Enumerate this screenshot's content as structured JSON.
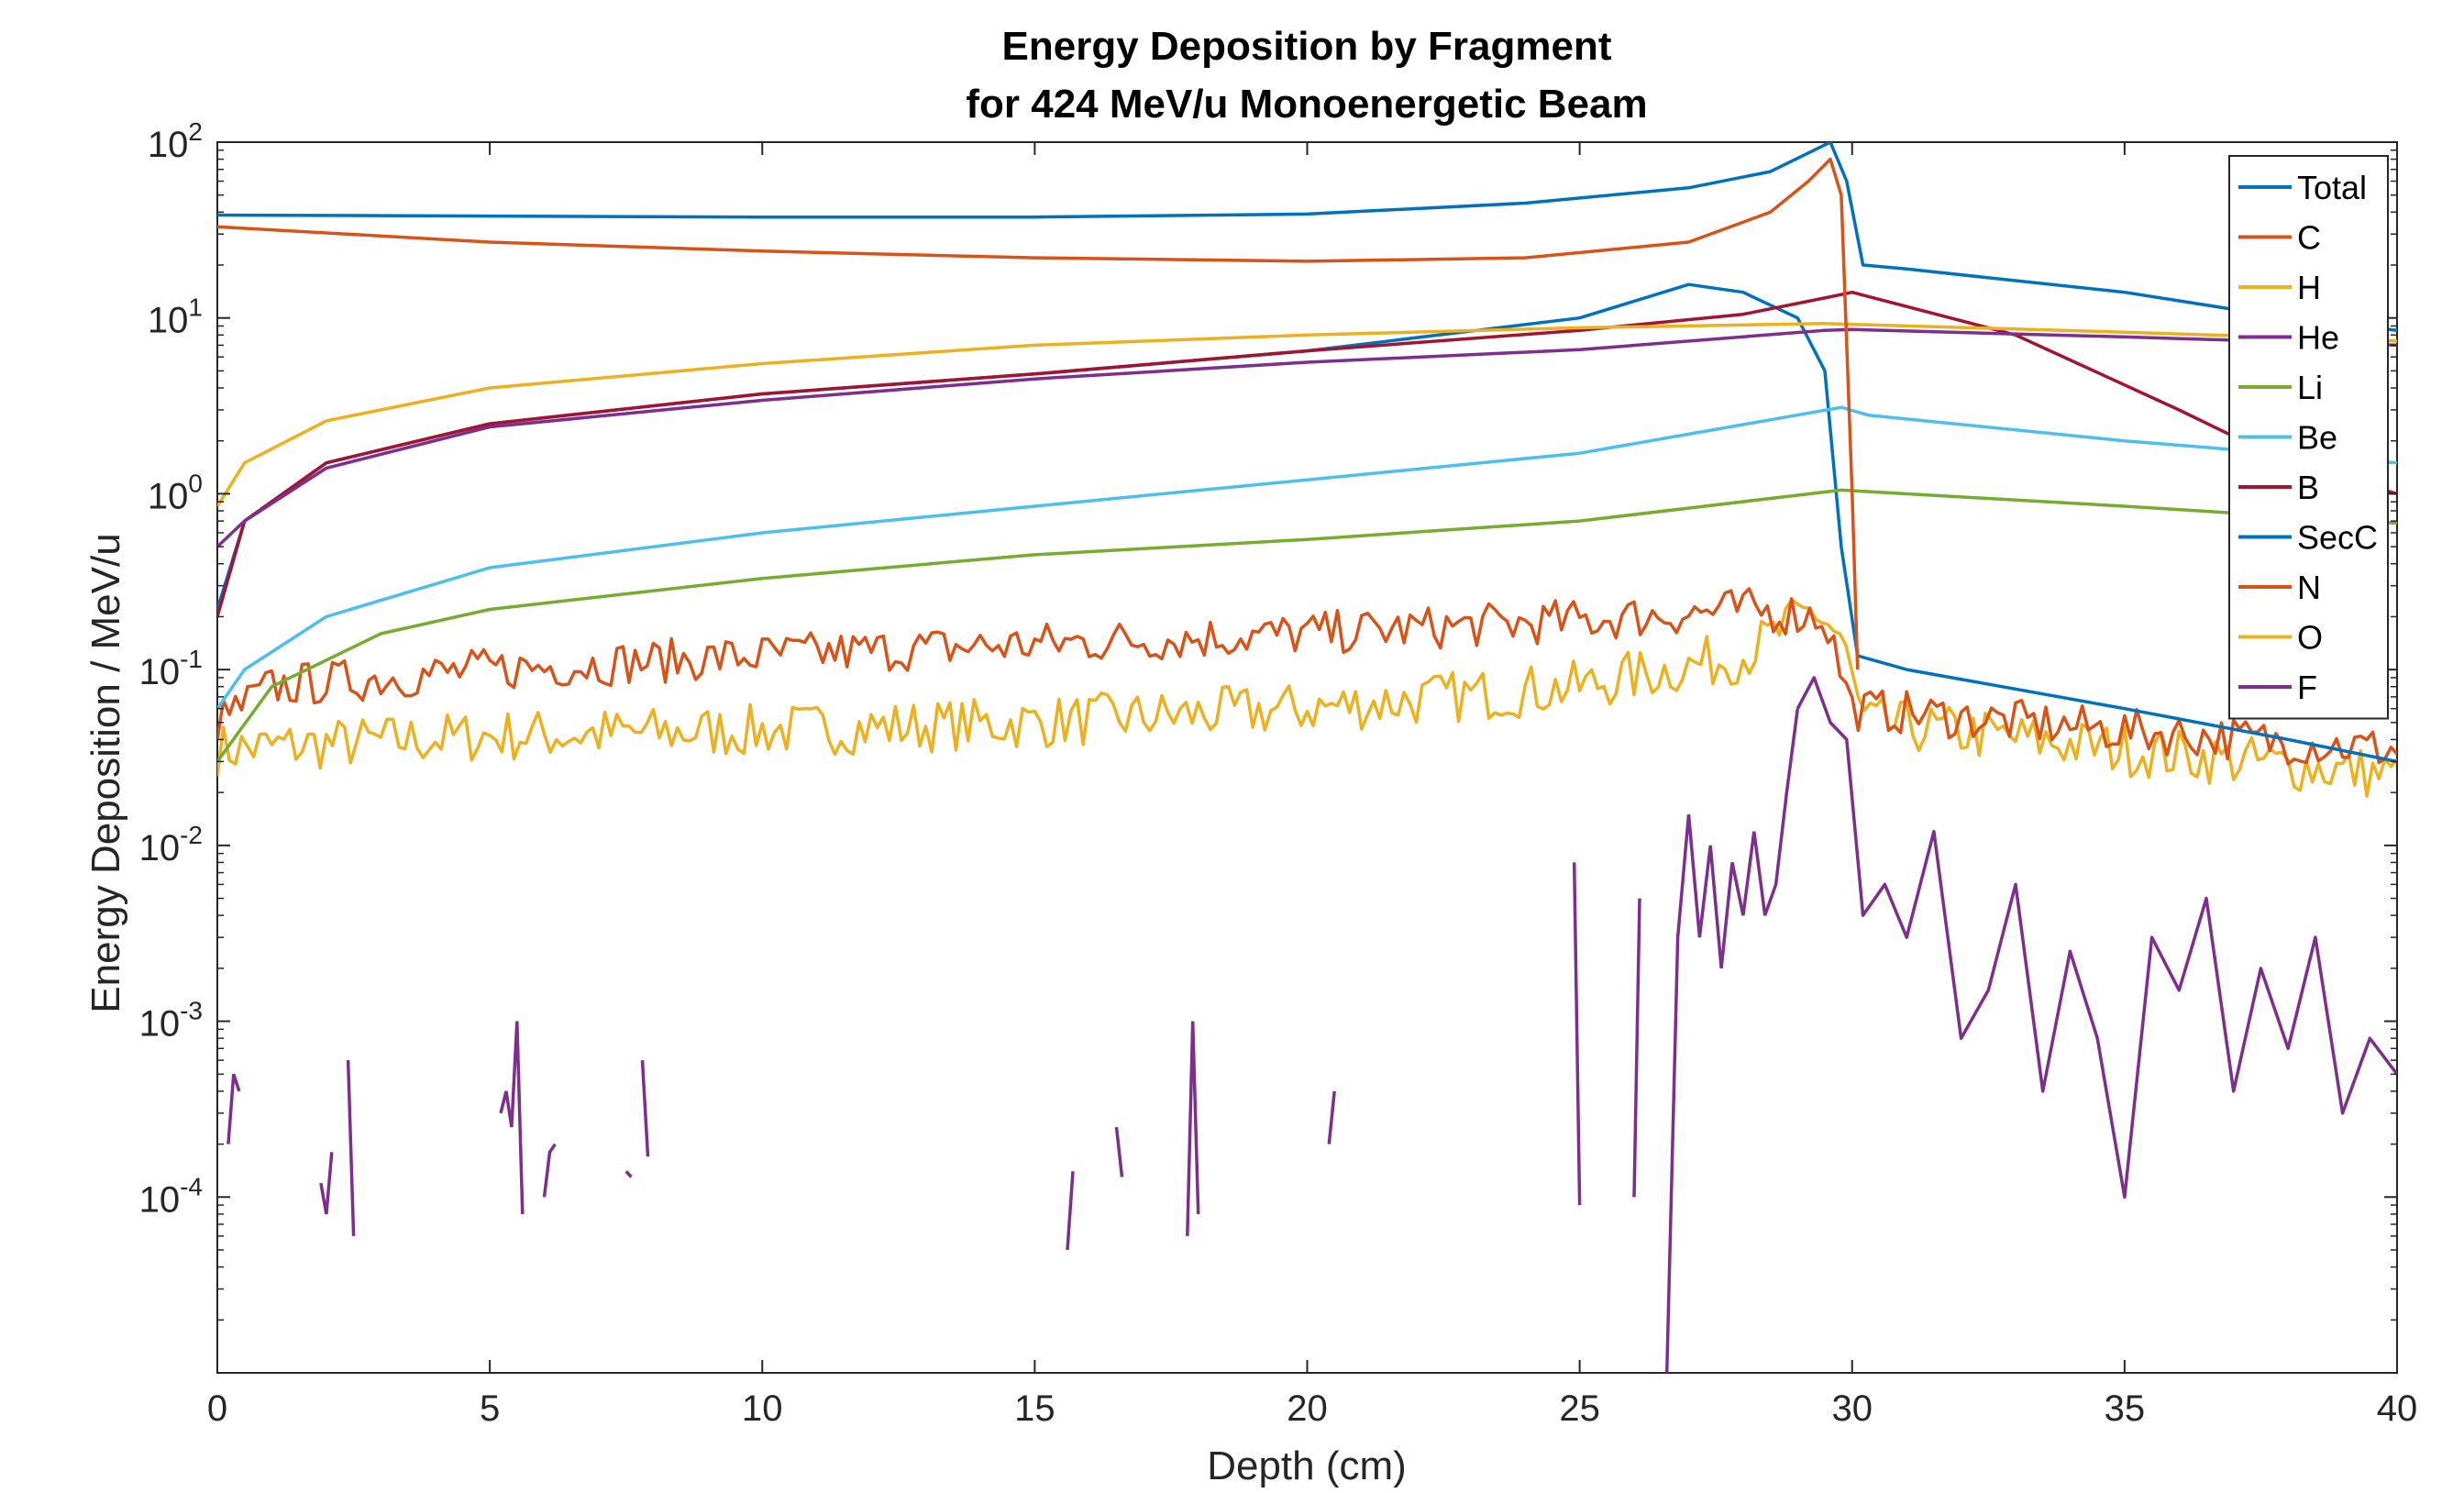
{
  "chart_data": {
    "type": "line",
    "title": "Energy Deposition by Fragment",
    "subtitle": "for 424 MeV/u Monoenergetic Beam",
    "xlabel": "Depth (cm)",
    "ylabel": "Energy Deposition / MeV/u",
    "xlim": [
      0,
      40
    ],
    "ylim": [
      1e-05,
      100
    ],
    "yscale": "log",
    "x_ticks": [
      "0",
      "5",
      "10",
      "15",
      "20",
      "25",
      "30",
      "35",
      "40"
    ],
    "y_ticks": [
      {
        "base": "10",
        "exp": "2",
        "value": 100
      },
      {
        "base": "10",
        "exp": "1",
        "value": 10
      },
      {
        "base": "10",
        "exp": "0",
        "value": 1
      },
      {
        "base": "10",
        "exp": "-1",
        "value": 0.1
      },
      {
        "base": "10",
        "exp": "-2",
        "value": 0.01
      },
      {
        "base": "10",
        "exp": "-3",
        "value": 0.001
      },
      {
        "base": "10",
        "exp": "-4",
        "value": 0.0001
      }
    ],
    "grid": false,
    "legend_position": "top-right",
    "series": [
      {
        "name": "Total",
        "color": "#0072BD",
        "noise": 0,
        "points": [
          [
            0,
            38.5
          ],
          [
            5,
            38
          ],
          [
            10,
            37.5
          ],
          [
            15,
            37.5
          ],
          [
            20,
            39
          ],
          [
            24,
            45
          ],
          [
            27,
            55
          ],
          [
            28.5,
            68
          ],
          [
            29.3,
            90
          ],
          [
            29.6,
            100
          ],
          [
            29.9,
            60
          ],
          [
            30.2,
            20
          ],
          [
            31,
            19
          ],
          [
            35,
            14
          ],
          [
            38,
            10
          ],
          [
            40,
            8.5
          ]
        ]
      },
      {
        "name": "C",
        "color": "#D95319",
        "noise": 0,
        "points": [
          [
            0,
            33
          ],
          [
            5,
            27
          ],
          [
            10,
            24
          ],
          [
            15,
            22
          ],
          [
            20,
            21
          ],
          [
            24,
            22
          ],
          [
            27,
            27
          ],
          [
            28.5,
            40
          ],
          [
            29.2,
            60
          ],
          [
            29.6,
            80
          ],
          [
            29.8,
            50
          ],
          [
            30.0,
            1
          ],
          [
            30.1,
            0.1
          ]
        ]
      },
      {
        "name": "H",
        "color": "#EDB120",
        "noise": 0,
        "points": [
          [
            0,
            0.85
          ],
          [
            0.5,
            1.5
          ],
          [
            2,
            2.6
          ],
          [
            5,
            4
          ],
          [
            10,
            5.5
          ],
          [
            15,
            7
          ],
          [
            20,
            8
          ],
          [
            25,
            8.8
          ],
          [
            29.5,
            9.3
          ],
          [
            30,
            9.2
          ],
          [
            35,
            8.3
          ],
          [
            40,
            7.4
          ]
        ]
      },
      {
        "name": "He",
        "color": "#7E2F8E",
        "noise": 0,
        "points": [
          [
            0,
            0.5
          ],
          [
            0.5,
            0.7
          ],
          [
            2,
            1.4
          ],
          [
            5,
            2.4
          ],
          [
            10,
            3.4
          ],
          [
            15,
            4.5
          ],
          [
            20,
            5.6
          ],
          [
            25,
            6.6
          ],
          [
            29.5,
            8.5
          ],
          [
            30,
            8.6
          ],
          [
            35,
            7.8
          ],
          [
            40,
            7
          ]
        ]
      },
      {
        "name": "Li",
        "color": "#77AC30",
        "noise": 0,
        "points": [
          [
            0,
            0.03
          ],
          [
            1,
            0.08
          ],
          [
            3,
            0.16
          ],
          [
            5,
            0.22
          ],
          [
            10,
            0.33
          ],
          [
            15,
            0.45
          ],
          [
            20,
            0.55
          ],
          [
            25,
            0.7
          ],
          [
            29.8,
            1.05
          ],
          [
            30.5,
            1.02
          ],
          [
            35,
            0.85
          ],
          [
            40,
            0.68
          ]
        ]
      },
      {
        "name": "Be",
        "color": "#4DBEEE",
        "noise": 0,
        "points": [
          [
            0,
            0.06
          ],
          [
            0.5,
            0.1
          ],
          [
            2,
            0.2
          ],
          [
            5,
            0.38
          ],
          [
            10,
            0.6
          ],
          [
            15,
            0.85
          ],
          [
            20,
            1.2
          ],
          [
            25,
            1.7
          ],
          [
            29.8,
            3.1
          ],
          [
            30.3,
            2.8
          ],
          [
            35,
            2
          ],
          [
            40,
            1.5
          ]
        ]
      },
      {
        "name": "B",
        "color": "#A2142F",
        "noise": 0,
        "points": [
          [
            0,
            0.2
          ],
          [
            0.5,
            0.7
          ],
          [
            2,
            1.5
          ],
          [
            5,
            2.5
          ],
          [
            10,
            3.7
          ],
          [
            15,
            4.8
          ],
          [
            20,
            6.5
          ],
          [
            25,
            8.5
          ],
          [
            28,
            10.5
          ],
          [
            29.5,
            13
          ],
          [
            30,
            14
          ],
          [
            33,
            8
          ],
          [
            36,
            3
          ],
          [
            38,
            1.5
          ],
          [
            40,
            1
          ]
        ]
      },
      {
        "name": "SecC",
        "color": "#0072BD",
        "noise": 0,
        "points": [
          [
            0,
            0.22
          ],
          [
            0.5,
            0.7
          ],
          [
            2,
            1.5
          ],
          [
            5,
            2.5
          ],
          [
            10,
            3.7
          ],
          [
            15,
            4.8
          ],
          [
            20,
            6.5
          ],
          [
            25,
            10
          ],
          [
            27,
            15.5
          ],
          [
            28,
            14
          ],
          [
            29,
            10
          ],
          [
            29.5,
            5
          ],
          [
            29.8,
            0.5
          ],
          [
            30.1,
            0.12
          ],
          [
            31,
            0.1
          ],
          [
            35,
            0.06
          ],
          [
            38,
            0.04
          ],
          [
            40,
            0.03
          ]
        ]
      },
      {
        "name": "N",
        "color": "#D95319",
        "noise": 0.25,
        "points": [
          [
            0,
            0.05
          ],
          [
            1,
            0.08
          ],
          [
            5,
            0.1
          ],
          [
            10,
            0.12
          ],
          [
            15,
            0.14
          ],
          [
            20,
            0.16
          ],
          [
            25,
            0.19
          ],
          [
            28,
            0.22
          ],
          [
            29.5,
            0.2
          ],
          [
            30,
            0.06
          ],
          [
            35,
            0.045
          ],
          [
            40,
            0.035
          ]
        ]
      },
      {
        "name": "O",
        "color": "#EDB120",
        "noise": 0.3,
        "points": [
          [
            0,
            0.035
          ],
          [
            5,
            0.042
          ],
          [
            10,
            0.045
          ],
          [
            15,
            0.05
          ],
          [
            20,
            0.06
          ],
          [
            25,
            0.08
          ],
          [
            28,
            0.12
          ],
          [
            29.3,
            0.22
          ],
          [
            29.8,
            0.15
          ],
          [
            30.2,
            0.05
          ],
          [
            35,
            0.035
          ],
          [
            40,
            0.025
          ]
        ]
      },
      {
        "name": "F",
        "color": "#7E2F8E",
        "noise": 0,
        "points": [
          [
            29,
            0.06
          ],
          [
            29.3,
            0.09
          ],
          [
            29.6,
            0.05
          ],
          [
            29.9,
            0.04
          ],
          [
            30.2,
            0.004
          ],
          [
            30.6,
            0.006
          ],
          [
            31,
            0.003
          ],
          [
            31.5,
            0.012
          ],
          [
            32,
            0.0008
          ],
          [
            32.5,
            0.0015
          ],
          [
            33,
            0.006
          ],
          [
            33.5,
            0.0004
          ],
          [
            34,
            0.0025
          ],
          [
            34.5,
            0.0008
          ],
          [
            35,
            0.0001
          ],
          [
            35.5,
            0.003
          ],
          [
            36,
            0.0015
          ],
          [
            36.5,
            0.005
          ],
          [
            37,
            0.0004
          ],
          [
            37.5,
            0.002
          ],
          [
            38,
            0.0007
          ],
          [
            38.5,
            0.003
          ],
          [
            39,
            0.0003
          ],
          [
            39.5,
            0.0008
          ],
          [
            40,
            0.0005
          ]
        ]
      }
    ],
    "sparse_segments": {
      "series": "F",
      "segments": [
        [
          [
            0.2,
            0.0002
          ],
          [
            0.3,
            0.0005
          ],
          [
            0.4,
            0.0004
          ]
        ],
        [
          [
            1.9,
            0.00012
          ],
          [
            2.0,
            8e-05
          ],
          [
            2.1,
            0.00018
          ]
        ],
        [
          [
            2.4,
            0.0006
          ],
          [
            2.5,
            6e-05
          ]
        ],
        [
          [
            5.2,
            0.0003
          ],
          [
            5.3,
            0.0004
          ],
          [
            5.4,
            0.00025
          ],
          [
            5.5,
            0.001
          ],
          [
            5.6,
            8e-05
          ]
        ],
        [
          [
            6.0,
            0.0001
          ],
          [
            6.1,
            0.00018
          ],
          [
            6.2,
            0.0002
          ]
        ],
        [
          [
            7.5,
            0.00014
          ],
          [
            7.6,
            0.00013
          ]
        ],
        [
          [
            7.8,
            0.0006
          ],
          [
            7.9,
            0.00017
          ]
        ],
        [
          [
            15.6,
            5e-05
          ],
          [
            15.7,
            0.00014
          ]
        ],
        [
          [
            16.5,
            0.00025
          ],
          [
            16.6,
            0.00013
          ]
        ],
        [
          [
            17.8,
            6e-05
          ],
          [
            17.9,
            0.001
          ],
          [
            18.0,
            8e-05
          ]
        ],
        [
          [
            20.4,
            0.0002
          ],
          [
            20.5,
            0.0004
          ]
        ],
        [
          [
            24.9,
            0.008
          ],
          [
            25.0,
            9e-05
          ]
        ],
        [
          [
            26.0,
            0.0001
          ],
          [
            26.1,
            0.005
          ]
        ],
        [
          [
            26.6,
            1e-05
          ],
          [
            26.8,
            0.003
          ],
          [
            27.0,
            0.015
          ],
          [
            27.2,
            0.003
          ],
          [
            27.4,
            0.01
          ],
          [
            27.6,
            0.002
          ],
          [
            27.8,
            0.008
          ],
          [
            28.0,
            0.004
          ],
          [
            28.2,
            0.012
          ],
          [
            28.4,
            0.004
          ],
          [
            28.6,
            0.006
          ],
          [
            28.8,
            0.02
          ],
          [
            29.0,
            0.06
          ]
        ]
      ]
    }
  }
}
